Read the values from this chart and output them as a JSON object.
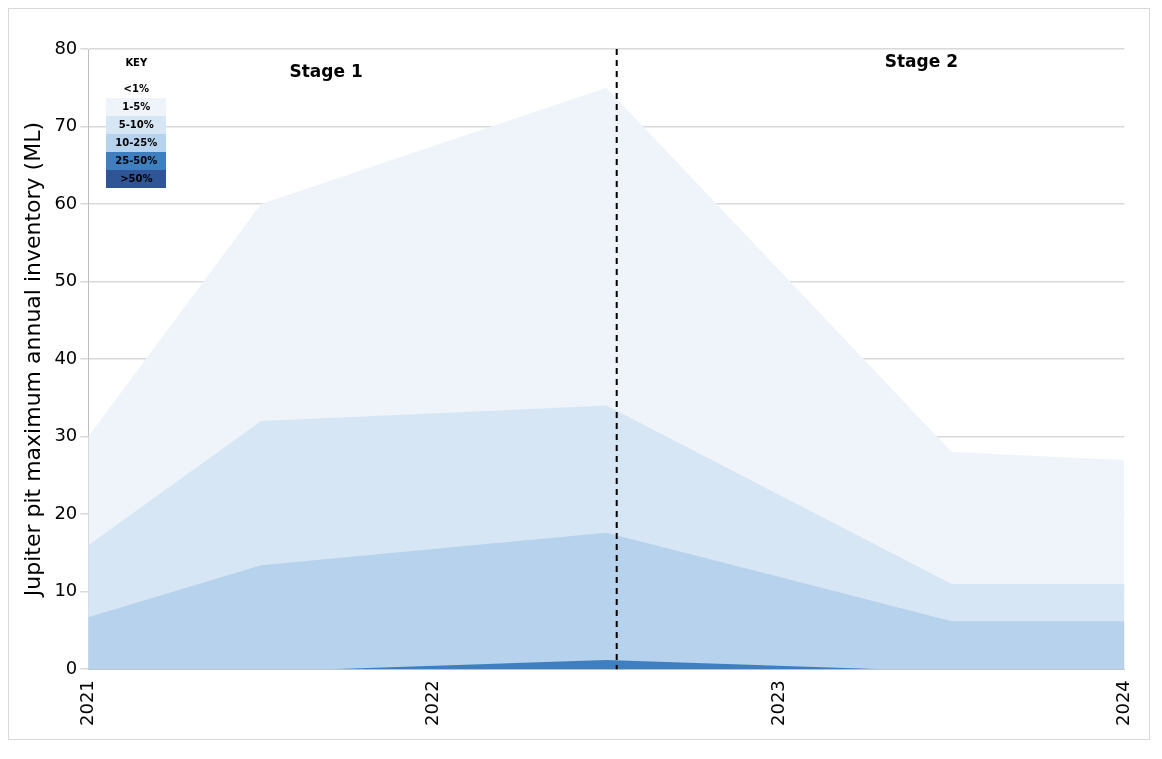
{
  "chart_data": {
    "type": "area",
    "ylabel": "Jupiter pit maximum annual inventory (ML)",
    "legend_title": "KEY",
    "x": [
      2021,
      2021.5,
      2022.5,
      2023.5,
      2024
    ],
    "xlim": [
      2021,
      2024
    ],
    "xticks": [
      2021,
      2022,
      2023,
      2024
    ],
    "ylim": [
      0,
      80
    ],
    "yticks": [
      0,
      10,
      20,
      30,
      40,
      50,
      60,
      70,
      80
    ],
    "grid": "y",
    "legend": "top left",
    "series": [
      {
        "name": "1-5%",
        "color": "#eef4fa",
        "values": [
          30,
          60,
          75,
          28,
          27
        ]
      },
      {
        "name": "5-10%",
        "color": "#d7e6f4",
        "values": [
          16,
          32,
          34,
          11,
          11
        ]
      },
      {
        "name": "10-25%",
        "color": "#b7d2ec",
        "values": [
          6.7,
          13.4,
          17.6,
          6.2,
          6.2
        ]
      },
      {
        "name": "25-50%",
        "color": "#3f7fbf",
        "x": [
          2021.7,
          2022.5,
          2023.3
        ],
        "values": [
          0,
          1.2,
          0
        ]
      }
    ],
    "ref_lines": [
      {
        "axis": "x",
        "value": 2022.53,
        "color": "#000000",
        "line_style": "dashed"
      }
    ],
    "annotations": [
      "Stage 1",
      "Stage 2",
      "<1%",
      ">50%"
    ]
  }
}
